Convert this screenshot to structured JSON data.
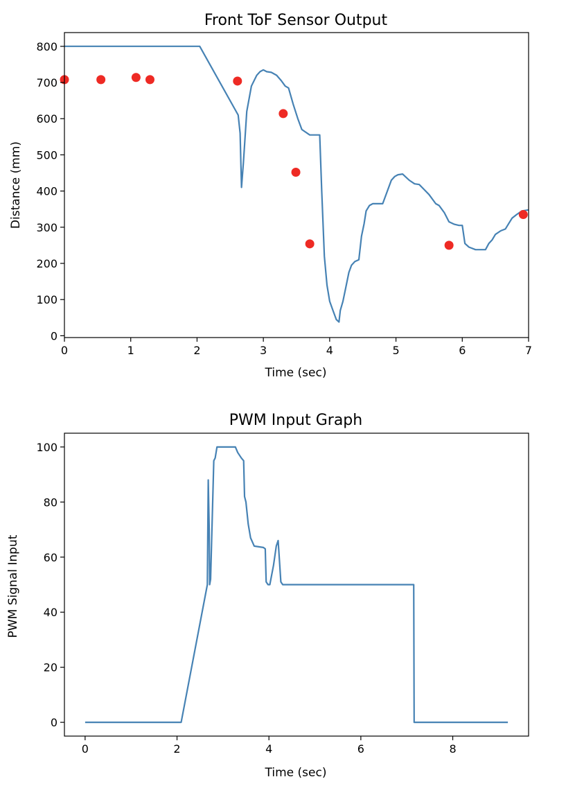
{
  "chart_data": [
    {
      "type": "line",
      "title": "Front ToF Sensor Output",
      "xlabel": "Time (sec)",
      "ylabel": "Distance (mm)",
      "xlim": [
        0,
        7
      ],
      "ylim": [
        -5,
        838
      ],
      "xticks": [
        "0",
        "1",
        "2",
        "3",
        "4",
        "5",
        "6",
        "7"
      ],
      "yticks": [
        "0",
        "100",
        "200",
        "300",
        "400",
        "500",
        "600",
        "700",
        "800"
      ],
      "grid": false,
      "line_color": "#4682b4",
      "marker_color": "#ee2a24",
      "series": [
        {
          "type": "line",
          "x": [
            0,
            2.04,
            2.62,
            2.65,
            2.67,
            2.7,
            2.75,
            2.82,
            2.9,
            2.95,
            3.0,
            3.05,
            3.12,
            3.2,
            3.27,
            3.33,
            3.38,
            3.45,
            3.52,
            3.58,
            3.7,
            3.78,
            3.82,
            3.85,
            3.88,
            3.92,
            3.96,
            4.0,
            4.05,
            4.1,
            4.14,
            4.16,
            4.2,
            4.24,
            4.29,
            4.33,
            4.38,
            4.44,
            4.48,
            4.52,
            4.55,
            4.6,
            4.65,
            4.73,
            4.8,
            4.93,
            4.98,
            5.03,
            5.1,
            5.2,
            5.28,
            5.35,
            5.42,
            5.5,
            5.6,
            5.65,
            5.73,
            5.8,
            5.88,
            5.95,
            6.0,
            6.04,
            6.1,
            6.2,
            6.35,
            6.4,
            6.45,
            6.5,
            6.58,
            6.65,
            6.7,
            6.75,
            6.82,
            6.9,
            7.0
          ],
          "y": [
            800,
            800,
            610,
            560,
            410,
            480,
            620,
            690,
            720,
            730,
            735,
            730,
            728,
            720,
            705,
            690,
            685,
            640,
            600,
            570,
            555,
            555,
            555,
            555,
            400,
            220,
            140,
            95,
            70,
            45,
            38,
            70,
            95,
            130,
            175,
            195,
            205,
            210,
            275,
            310,
            345,
            360,
            365,
            365,
            365,
            430,
            440,
            445,
            447,
            430,
            420,
            418,
            405,
            390,
            365,
            360,
            340,
            315,
            308,
            305,
            305,
            255,
            245,
            238,
            238,
            255,
            265,
            280,
            290,
            295,
            310,
            325,
            335,
            345,
            348
          ]
        },
        {
          "type": "scatter",
          "x": [
            0,
            0.55,
            1.08,
            1.29,
            2.61,
            3.3,
            3.49,
            3.7,
            5.8,
            6.92
          ],
          "y": [
            708,
            708,
            714,
            708,
            704,
            614,
            452,
            254,
            250,
            335
          ]
        }
      ]
    },
    {
      "type": "line",
      "title": "PWM Input Graph",
      "xlabel": "Time (sec)",
      "ylabel": "PWM Signal Input",
      "xlim": [
        -0.45,
        9.65
      ],
      "ylim": [
        -5,
        105
      ],
      "xticks": [
        "0",
        "2",
        "4",
        "6",
        "8"
      ],
      "yticks": [
        "0",
        "20",
        "40",
        "60",
        "80",
        "100"
      ],
      "grid": false,
      "line_color": "#4682b4",
      "series": [
        {
          "type": "line",
          "x": [
            0,
            2.09,
            2.66,
            2.68,
            2.7,
            2.71,
            2.73,
            2.8,
            2.83,
            2.87,
            2.9,
            3.27,
            3.32,
            3.4,
            3.45,
            3.47,
            3.5,
            3.55,
            3.6,
            3.68,
            3.88,
            3.92,
            3.94,
            3.98,
            4.02,
            4.1,
            4.16,
            4.2,
            4.22,
            4.26,
            4.3,
            7.15,
            7.16,
            9.2
          ],
          "y": [
            0,
            0,
            50,
            88,
            70,
            50,
            52,
            95,
            96,
            100,
            100,
            100,
            98,
            96,
            95,
            82,
            80,
            72,
            67,
            64,
            63.5,
            63,
            51,
            50,
            50,
            57,
            64,
            66,
            61,
            51,
            50,
            50,
            0,
            0
          ]
        }
      ]
    }
  ]
}
